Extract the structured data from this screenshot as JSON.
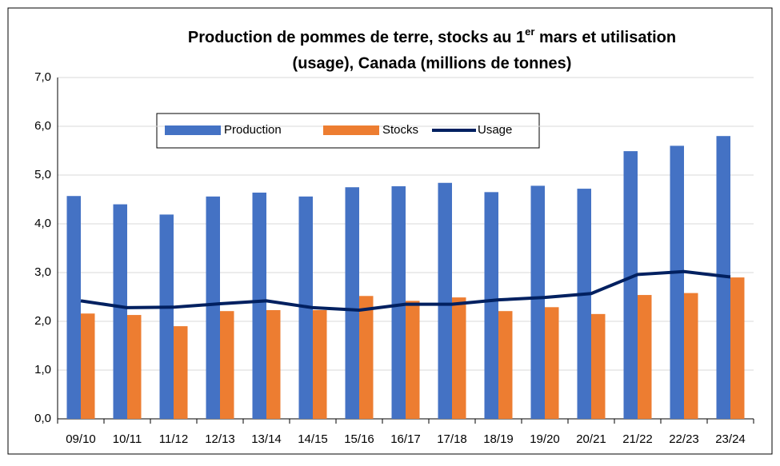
{
  "chart_data": {
    "type": "bar_line",
    "title": [
      "Production de pommes de terre, stocks au 1",
      "er",
      " mars et utilisation",
      "(usage), Canada (millions de tonnes)"
    ],
    "categories": [
      "09/10",
      "10/11",
      "11/12",
      "12/13",
      "13/14",
      "14/15",
      "15/16",
      "16/17",
      "17/18",
      "18/19",
      "19/20",
      "20/21",
      "21/22",
      "22/23",
      "23/24"
    ],
    "series": [
      {
        "name": "Production",
        "type": "bar",
        "color": "#4472c4",
        "values": [
          4.57,
          4.4,
          4.19,
          4.56,
          4.64,
          4.56,
          4.75,
          4.77,
          4.84,
          4.65,
          4.78,
          4.72,
          5.49,
          5.6,
          5.8
        ]
      },
      {
        "name": "Stocks",
        "type": "bar",
        "color": "#ed7d31",
        "values": [
          2.16,
          2.13,
          1.9,
          2.21,
          2.23,
          2.23,
          2.52,
          2.42,
          2.49,
          2.21,
          2.29,
          2.15,
          2.54,
          2.58,
          2.9
        ]
      },
      {
        "name": "Usage",
        "type": "line",
        "color": "#002060",
        "values": [
          2.42,
          2.28,
          2.29,
          2.36,
          2.42,
          2.28,
          2.23,
          2.35,
          2.35,
          2.44,
          2.49,
          2.57,
          2.96,
          3.02,
          2.91
        ]
      }
    ],
    "ylim": [
      0,
      7
    ],
    "yticks": [
      {
        "value": 0,
        "label": "0,0"
      },
      {
        "value": 1,
        "label": "1,0"
      },
      {
        "value": 2,
        "label": "2,0"
      },
      {
        "value": 3,
        "label": "3,0"
      },
      {
        "value": 4,
        "label": "4,0"
      },
      {
        "value": 5,
        "label": "5,0"
      },
      {
        "value": 6,
        "label": "6,0"
      },
      {
        "value": 7,
        "label": "7,0"
      }
    ],
    "grid": true
  }
}
